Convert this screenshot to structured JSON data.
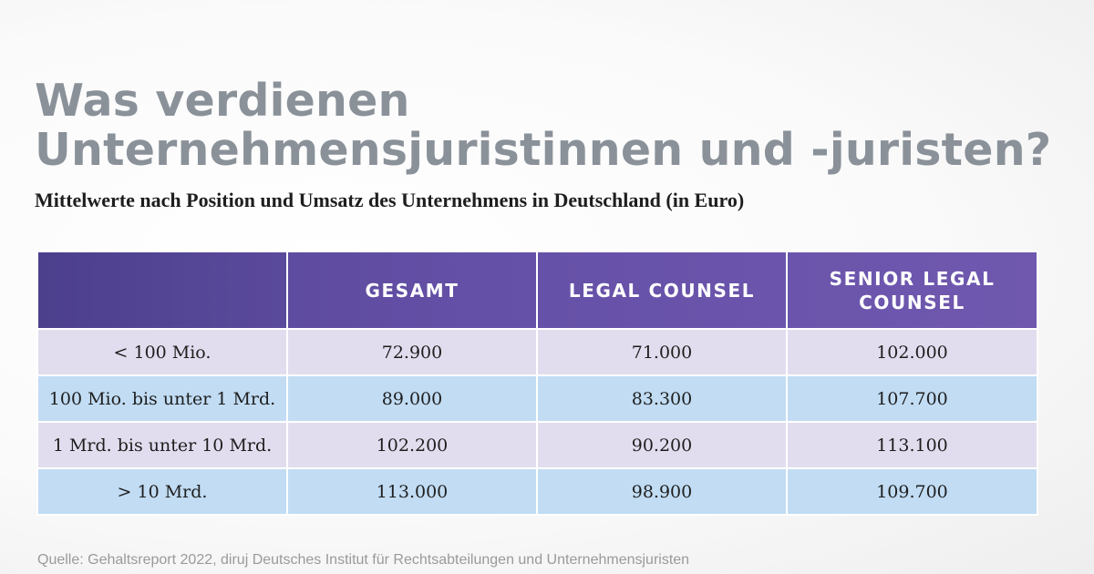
{
  "title": "Was verdienen Unternehmensjuristinnen und -juristen?",
  "subtitle": "Mittelwerte nach Position und Umsatz des Unternehmens in Deutschland (in Euro)",
  "source": "Quelle: Gehaltsreport 2022, diruj Deutsches Institut für Rechtsabteilungen und Unternehmensjuristen",
  "colors": {
    "header": "#6651a8",
    "row_purple": "#e2ddee",
    "row_blue": "#c1dcf3",
    "title": "#8a9199"
  },
  "chart_data": {
    "type": "table",
    "title": "Was verdienen Unternehmensjuristinnen und -juristen?",
    "subtitle": "Mittelwerte nach Position und Umsatz des Unternehmens in Deutschland (in Euro)",
    "columns": [
      "",
      "GESAMT",
      "LEGAL COUNSEL",
      "SENIOR LEGAL COUNSEL"
    ],
    "rows": [
      [
        "< 100 Mio.",
        "72.900",
        "71.000",
        "102.000"
      ],
      [
        "100 Mio. bis unter 1 Mrd.",
        "89.000",
        "83.300",
        "107.700"
      ],
      [
        "1 Mrd. bis unter 10 Mrd.",
        "102.200",
        "90.200",
        "113.100"
      ],
      [
        "> 10 Mrd.",
        "113.000",
        "98.900",
        "109.700"
      ]
    ]
  }
}
